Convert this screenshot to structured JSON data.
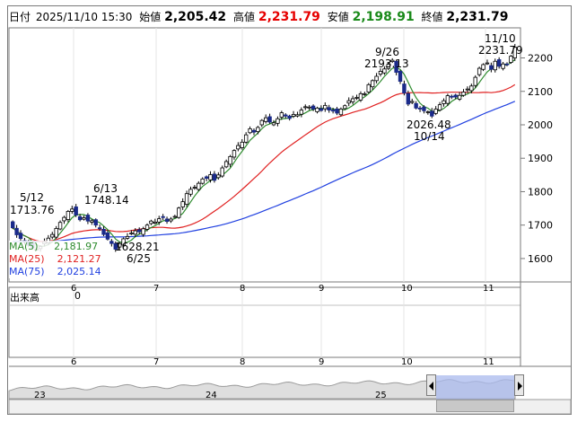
{
  "header": {
    "date_label": "日付",
    "datetime": "2025/11/10 15:30",
    "open_label": "始値",
    "open": "2,205.42",
    "high_label": "高値",
    "high": "2,231.79",
    "low_label": "安値",
    "low": "2,198.91",
    "close_label": "終値",
    "close": "2,231.79"
  },
  "legend": [
    {
      "label": "MA(5)",
      "value": "2,181.97",
      "color": "#2e8b2e"
    },
    {
      "label": "MA(25)",
      "value": "2,121.27",
      "color": "#e02020"
    },
    {
      "label": "MA(75)",
      "value": "2,025.14",
      "color": "#2040e0"
    }
  ],
  "volume": {
    "label": "出来高",
    "value": "0"
  },
  "annotations": {
    "a1_date": "5/12",
    "a1_val": "1713.76",
    "a2_date": "6/13",
    "a2_val": "1748.14",
    "a3_val": "1628.21",
    "a3_date": "6/25",
    "a4_date": "9/26",
    "a4_val": "2193.13",
    "a5_val": "2026.48",
    "a5_date": "10/14",
    "a6_date": "11/10",
    "a6_val": "2231.79"
  },
  "nav": {
    "labels": [
      "23",
      "24",
      "25"
    ]
  },
  "chart_data": {
    "type": "candlestick",
    "y_ticks": [
      "2200",
      "2100",
      "2000",
      "1900",
      "1800",
      "1700",
      "1600"
    ],
    "ylim": [
      1530,
      2290
    ],
    "x_ticks": [
      "6",
      "7",
      "8",
      "9",
      "10",
      "11"
    ],
    "closes": [
      1692,
      1671,
      1660,
      1649,
      1640,
      1632,
      1628,
      1636,
      1650,
      1661,
      1672,
      1690,
      1708,
      1723,
      1741,
      1748,
      1730,
      1716,
      1722,
      1712,
      1713,
      1700,
      1689,
      1672,
      1658,
      1645,
      1628,
      1645,
      1659,
      1666,
      1676,
      1683,
      1680,
      1689,
      1700,
      1712,
      1709,
      1719,
      1723,
      1711,
      1718,
      1726,
      1751,
      1770,
      1794,
      1807,
      1813,
      1825,
      1838,
      1840,
      1851,
      1834,
      1850,
      1871,
      1890,
      1905,
      1923,
      1938,
      1948,
      1970,
      1988,
      1978,
      1992,
      2013,
      2021,
      2008,
      2006,
      2018,
      2036,
      2026,
      2019,
      2031,
      2030,
      2044,
      2054,
      2053,
      2047,
      2050,
      2043,
      2058,
      2044,
      2041,
      2035,
      2047,
      2057,
      2072,
      2078,
      2082,
      2093,
      2093,
      2120,
      2132,
      2145,
      2160,
      2167,
      2181,
      2193,
      2157,
      2130,
      2095,
      2062,
      2070,
      2050,
      2047,
      2042,
      2039,
      2026,
      2047,
      2060,
      2072,
      2087,
      2084,
      2083,
      2088,
      2098,
      2107,
      2116,
      2142,
      2169,
      2180,
      2185,
      2166,
      2190,
      2175,
      2182,
      2180,
      2205,
      2231.79
    ],
    "ma5_end": 2181.97,
    "ma25_end": 2121.27,
    "ma75_end": 2025.14
  }
}
